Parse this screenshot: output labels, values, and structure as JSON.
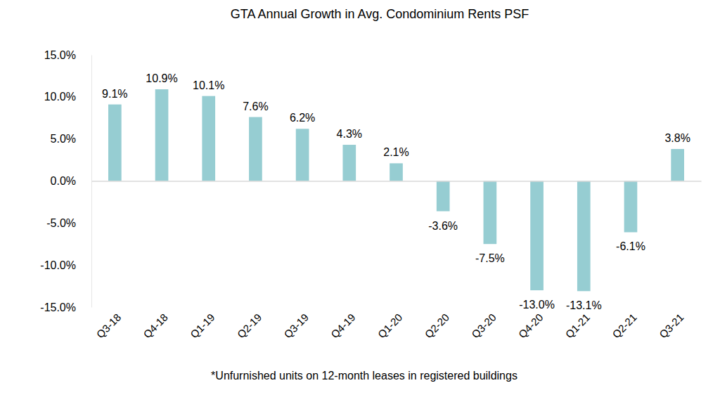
{
  "chart_data": {
    "type": "bar",
    "title": "GTA Annual Growth in Avg. Condominium Rents PSF",
    "footnote": "*Unfurnished units on 12-month leases in registered buildings",
    "categories": [
      "Q3-18",
      "Q4-18",
      "Q1-19",
      "Q2-19",
      "Q3-19",
      "Q4-19",
      "Q1-20",
      "Q2-20",
      "Q3-20",
      "Q4-20",
      "Q1-21",
      "Q2-21",
      "Q3-21"
    ],
    "values": [
      9.1,
      10.9,
      10.1,
      7.6,
      6.2,
      4.3,
      2.1,
      -3.6,
      -7.5,
      -13.0,
      -13.1,
      -6.1,
      3.8
    ],
    "value_labels": [
      "9.1%",
      "10.9%",
      "10.1%",
      "7.6%",
      "6.2%",
      "4.3%",
      "2.1%",
      "-3.6%",
      "-7.5%",
      "-13.0%",
      "-13.1%",
      "-6.1%",
      "3.8%"
    ],
    "color": "#96cdd2",
    "ylim": [
      -15,
      15
    ],
    "yticks": [
      {
        "value": -15,
        "label": "-15.0%"
      },
      {
        "value": -10,
        "label": "-10.0%"
      },
      {
        "value": -5,
        "label": "-5.0%"
      },
      {
        "value": 0,
        "label": "0.0%"
      },
      {
        "value": 5,
        "label": "5.0%"
      },
      {
        "value": 10,
        "label": "10.0%"
      },
      {
        "value": 15,
        "label": "15.0%"
      }
    ],
    "grid": false,
    "data_labels": true
  }
}
